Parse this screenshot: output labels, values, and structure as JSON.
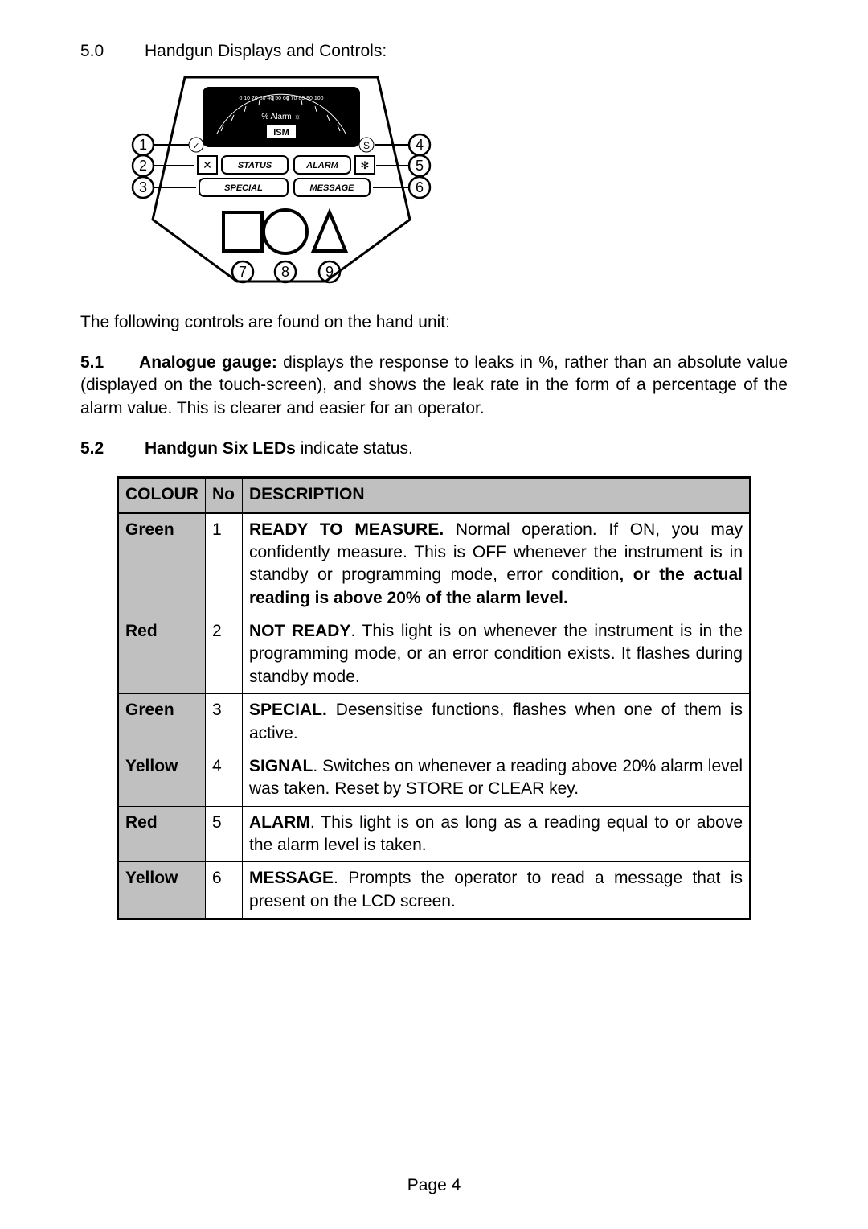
{
  "section": {
    "num": "5.0",
    "title": "Handgun Displays and Controls:"
  },
  "diagram": {
    "gauge_ticks": "0 10 20 30 40 50 60 70 80 90 100",
    "gauge_label": "% Alarm",
    "ism_text": "ISM",
    "status_label": "STATUS",
    "alarm_label": "ALARM",
    "special_label": "SPECIAL",
    "message_label": "MESSAGE",
    "callouts": [
      "1",
      "2",
      "3",
      "4",
      "5",
      "6",
      "7",
      "8",
      "9"
    ]
  },
  "intro_line": "The following controls are found on the hand unit:",
  "para51": {
    "num": "5.1",
    "label": "Analogue gauge:",
    "text": " displays the response to leaks in %, rather than an absolute value (displayed on the touch-screen), and shows the leak rate in the form of a percentage of the alarm value. This is clearer and easier for an operator."
  },
  "para52": {
    "num": "5.2",
    "label": "Handgun Six LEDs",
    "rest": " indicate status."
  },
  "table": {
    "headers": [
      "COLOUR",
      "No",
      "DESCRIPTION"
    ],
    "rows": [
      {
        "colour": "Green",
        "no": "1",
        "desc_bold": "READY TO MEASURE.",
        "desc_rest": " Normal operation. If ON, you may confidently measure. This is OFF whenever the instrument is in standby or programming mode, error condition",
        "desc_bold2": ", or the actual reading is above 20% of the alarm level."
      },
      {
        "colour": "Red",
        "no": "2",
        "desc_bold": "NOT READY",
        "desc_rest": ". This light is on whenever the instrument is in the programming mode, or an error condition exists. It flashes during standby mode.",
        "desc_bold2": ""
      },
      {
        "colour": "Green",
        "no": "3",
        "desc_bold": "SPECIAL.",
        "desc_rest": " Desensitise functions, flashes when one of them is active.",
        "desc_bold2": ""
      },
      {
        "colour": "Yellow",
        "no": "4",
        "desc_bold": "SIGNAL",
        "desc_rest": ". Switches on whenever a reading above 20% alarm level was taken. Reset by STORE or CLEAR key.",
        "desc_bold2": ""
      },
      {
        "colour": "Red",
        "no": "5",
        "desc_bold": "ALARM",
        "desc_rest": ". This light is on as long as a reading equal to or above the alarm level is taken.",
        "desc_bold2": ""
      },
      {
        "colour": "Yellow",
        "no": "6",
        "desc_bold": "MESSAGE",
        "desc_rest": ". Prompts the operator to read a message that is present on the LCD screen.",
        "desc_bold2": ""
      }
    ]
  },
  "footer": "Page 4",
  "colors": {
    "bg": "#ffffff",
    "text": "#000000",
    "grey": "#c0c0c0"
  }
}
